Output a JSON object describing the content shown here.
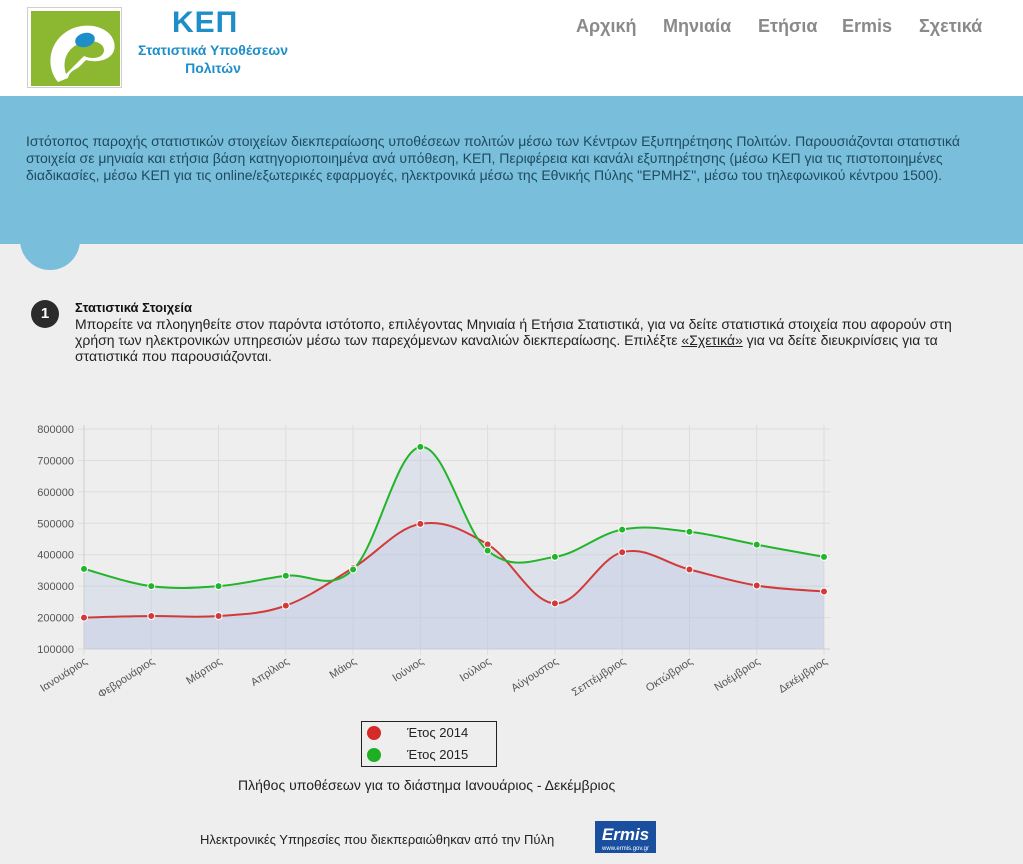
{
  "header": {
    "brand_title": "ΚΕΠ",
    "brand_subtitle": "Στατιστικά Υποθέσεων Πολιτών",
    "nav": [
      "Αρχική",
      "Μηνιαία",
      "Ετήσια",
      "Ermis",
      "Σχετικά"
    ]
  },
  "banner": {
    "text": "Ιστότοπος παροχής στατιστικών στοιχείων διεκπεραίωσης υποθέσεων πολιτών μέσω των Κέντρων Εξυπηρέτησης Πολιτών. Παρουσιάζονται στατιστικά στοιχεία σε μηνιαία και ετήσια βάση κατηγοριοποιημένα ανά υπόθεση, ΚΕΠ, Περιφέρεια και κανάλι εξυπηρέτησης (μέσω ΚΕΠ για τις πιστοποιημένες διαδικασίες, μέσω ΚΕΠ για τις online/εξωτερικές εφαρμογές, ηλεκτρονικά μέσω της Εθνικής Πύλης \"ΕΡΜΗΣ\", μέσω του τηλεφωνικού κέντρου 1500)."
  },
  "step": {
    "number": "1",
    "title": "Στατιστικά Στοιχεία",
    "text_before": "Μπορείτε να πλοηγηθείτε στον παρόντα ιστότοπο, επιλέγοντας Μηνιαία ή Ετήσια Στατιστικά, για να δείτε στατιστικά στοιχεία που αφορούν στη χρήση των ηλεκτρονικών υπηρεσιών μέσω των παρεχόμενων καναλιών διεκπεραίωσης. Επιλέξτε ",
    "link": "«Σχετικά»",
    "text_after": " για να δείτε διευκρινίσεις για τα στατιστικά που παρουσιάζονται."
  },
  "chart_data": {
    "type": "line",
    "categories": [
      "Ιανουάριος",
      "Φεβρουάριος",
      "Μάρτιος",
      "Απρίλιος",
      "Μάιος",
      "Ιούνιος",
      "Ιούλιος",
      "Αύγουστος",
      "Σεπτέμβριος",
      "Οκτώβριος",
      "Νοέμβριος",
      "Δεκέμβριος"
    ],
    "series": [
      {
        "name": "Έτος 2014",
        "color": "#d23a3a",
        "values": [
          200000,
          205000,
          205000,
          238000,
          358000,
          498000,
          433000,
          245000,
          408000,
          353000,
          302000,
          283000
        ]
      },
      {
        "name": "Έτος 2015",
        "color": "#22b42a",
        "values": [
          355000,
          300000,
          300000,
          333000,
          353000,
          743000,
          413000,
          393000,
          480000,
          473000,
          432000,
          393000
        ]
      }
    ],
    "ylim": [
      100000,
      800000
    ],
    "yticks": [
      "800000",
      "700000",
      "600000",
      "500000",
      "400000",
      "300000",
      "200000",
      "100000"
    ],
    "grid": true,
    "legend": "bottom",
    "caption": "Πλήθος υποθέσεων για το διάστημα Ιανουάριος - Δεκέμβριος"
  },
  "footer": {
    "text": "Ηλεκτρονικές Υπηρεσίες που διεκπεραιώθηκαν από την Πύλη",
    "logo_text": "Ermis",
    "logo_url_text": "www.ermis.gov.gr"
  }
}
